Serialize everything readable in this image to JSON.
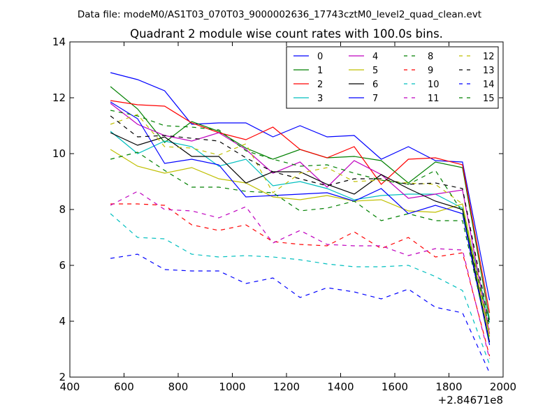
{
  "chart_data": {
    "type": "line",
    "suptitle": "Data file: modeM0/AS1T03_070T03_9000002636_17743cztM0_level2_quad_clean.evt",
    "title": "Quadrant 2 module wise count rates with 100.0s bins.",
    "xlabel": "",
    "ylabel": "",
    "x_offset_label": "+2.84671e8",
    "xlim": [
      400,
      2000
    ],
    "ylim": [
      2,
      14
    ],
    "xticks": [
      400,
      600,
      800,
      1000,
      1200,
      1400,
      1600,
      1800,
      2000
    ],
    "yticks": [
      2,
      4,
      6,
      8,
      10,
      12,
      14
    ],
    "grid": false,
    "legend_position": "top-right",
    "legend_columns": 4,
    "x": [
      550,
      650,
      750,
      850,
      950,
      1050,
      1150,
      1250,
      1350,
      1450,
      1550,
      1650,
      1750,
      1850,
      1950
    ],
    "series": [
      {
        "name": "0",
        "color": "#0000ff",
        "dash": "solid",
        "values": [
          12.9,
          12.65,
          12.25,
          11.05,
          11.1,
          11.1,
          10.6,
          11.0,
          10.6,
          10.65,
          9.8,
          10.25,
          9.75,
          9.7,
          4.75
        ]
      },
      {
        "name": "1",
        "color": "#008000",
        "dash": "solid",
        "values": [
          12.4,
          11.6,
          10.4,
          11.15,
          10.8,
          10.2,
          9.8,
          10.15,
          9.85,
          9.9,
          9.75,
          8.95,
          9.7,
          9.5,
          4.05
        ]
      },
      {
        "name": "2",
        "color": "#ff0000",
        "dash": "solid",
        "values": [
          11.9,
          11.75,
          11.7,
          11.1,
          10.75,
          10.5,
          10.95,
          10.15,
          9.85,
          10.25,
          8.9,
          9.8,
          9.85,
          9.6,
          4.3
        ]
      },
      {
        "name": "3",
        "color": "#00bfbf",
        "dash": "solid",
        "values": [
          10.8,
          10.0,
          10.45,
          10.25,
          9.55,
          9.8,
          8.85,
          9.0,
          8.75,
          8.35,
          8.5,
          8.55,
          8.55,
          8.05,
          3.95
        ]
      },
      {
        "name": "4",
        "color": "#bf00bf",
        "dash": "solid",
        "values": [
          11.8,
          11.05,
          10.65,
          10.45,
          10.75,
          10.15,
          9.3,
          9.7,
          8.8,
          9.75,
          9.25,
          8.4,
          8.55,
          8.7,
          3.55
        ]
      },
      {
        "name": "5",
        "color": "#bfbf00",
        "dash": "solid",
        "values": [
          10.15,
          9.55,
          9.3,
          9.5,
          9.1,
          8.95,
          8.45,
          8.35,
          8.5,
          8.3,
          8.35,
          7.95,
          7.9,
          8.2,
          3.45
        ]
      },
      {
        "name": "6",
        "color": "#000000",
        "dash": "solid",
        "values": [
          10.75,
          10.3,
          10.6,
          9.9,
          9.9,
          8.95,
          9.35,
          9.35,
          8.9,
          8.55,
          9.25,
          8.75,
          8.3,
          8.0,
          3.25
        ]
      },
      {
        "name": "7",
        "color": "#0000ff",
        "dash": "solid",
        "values": [
          11.85,
          11.25,
          9.65,
          9.8,
          9.6,
          8.45,
          8.5,
          8.55,
          8.6,
          8.3,
          8.75,
          7.85,
          8.15,
          7.85,
          3.15
        ]
      },
      {
        "name": "8",
        "color": "#008000",
        "dash": "dashed",
        "values": [
          9.8,
          10.05,
          9.4,
          8.8,
          8.8,
          8.65,
          8.6,
          7.95,
          8.05,
          8.3,
          7.6,
          7.85,
          7.6,
          7.6,
          3.3
        ]
      },
      {
        "name": "9",
        "color": "#ff0000",
        "dash": "dashed",
        "values": [
          8.2,
          8.2,
          8.15,
          7.45,
          7.25,
          7.45,
          6.85,
          6.75,
          6.7,
          7.2,
          6.6,
          7.0,
          6.3,
          6.45,
          2.75
        ]
      },
      {
        "name": "10",
        "color": "#00bfbf",
        "dash": "dashed",
        "values": [
          7.85,
          7.0,
          6.95,
          6.4,
          6.3,
          6.35,
          6.3,
          6.2,
          6.05,
          5.95,
          5.95,
          6.0,
          5.6,
          5.1,
          2.45
        ]
      },
      {
        "name": "11",
        "color": "#bf00bf",
        "dash": "dashed",
        "values": [
          8.15,
          8.65,
          8.0,
          7.95,
          7.7,
          8.1,
          6.8,
          7.25,
          6.75,
          6.7,
          6.7,
          6.35,
          6.6,
          6.55,
          2.65
        ]
      },
      {
        "name": "12",
        "color": "#bfbf00",
        "dash": "dashed",
        "values": [
          11.05,
          11.4,
          10.25,
          10.2,
          9.95,
          10.35,
          8.6,
          9.3,
          9.5,
          9.0,
          9.05,
          8.95,
          8.9,
          8.2,
          3.7
        ]
      },
      {
        "name": "13",
        "color": "#000000",
        "dash": "dashed",
        "values": [
          11.35,
          10.6,
          10.65,
          10.55,
          10.45,
          9.85,
          9.35,
          9.1,
          8.85,
          9.1,
          9.1,
          8.9,
          8.95,
          8.75,
          3.85
        ]
      },
      {
        "name": "14",
        "color": "#0000ff",
        "dash": "dashed",
        "values": [
          6.25,
          6.4,
          5.85,
          5.8,
          5.8,
          5.35,
          5.55,
          4.85,
          5.2,
          5.05,
          4.8,
          5.15,
          4.5,
          4.3,
          2.15
        ]
      },
      {
        "name": "15",
        "color": "#008000",
        "dash": "dashed",
        "values": [
          11.55,
          11.35,
          11.0,
          10.95,
          10.85,
          10.1,
          9.8,
          9.55,
          9.6,
          9.3,
          9.05,
          8.9,
          9.4,
          7.9,
          3.75
        ]
      }
    ]
  }
}
